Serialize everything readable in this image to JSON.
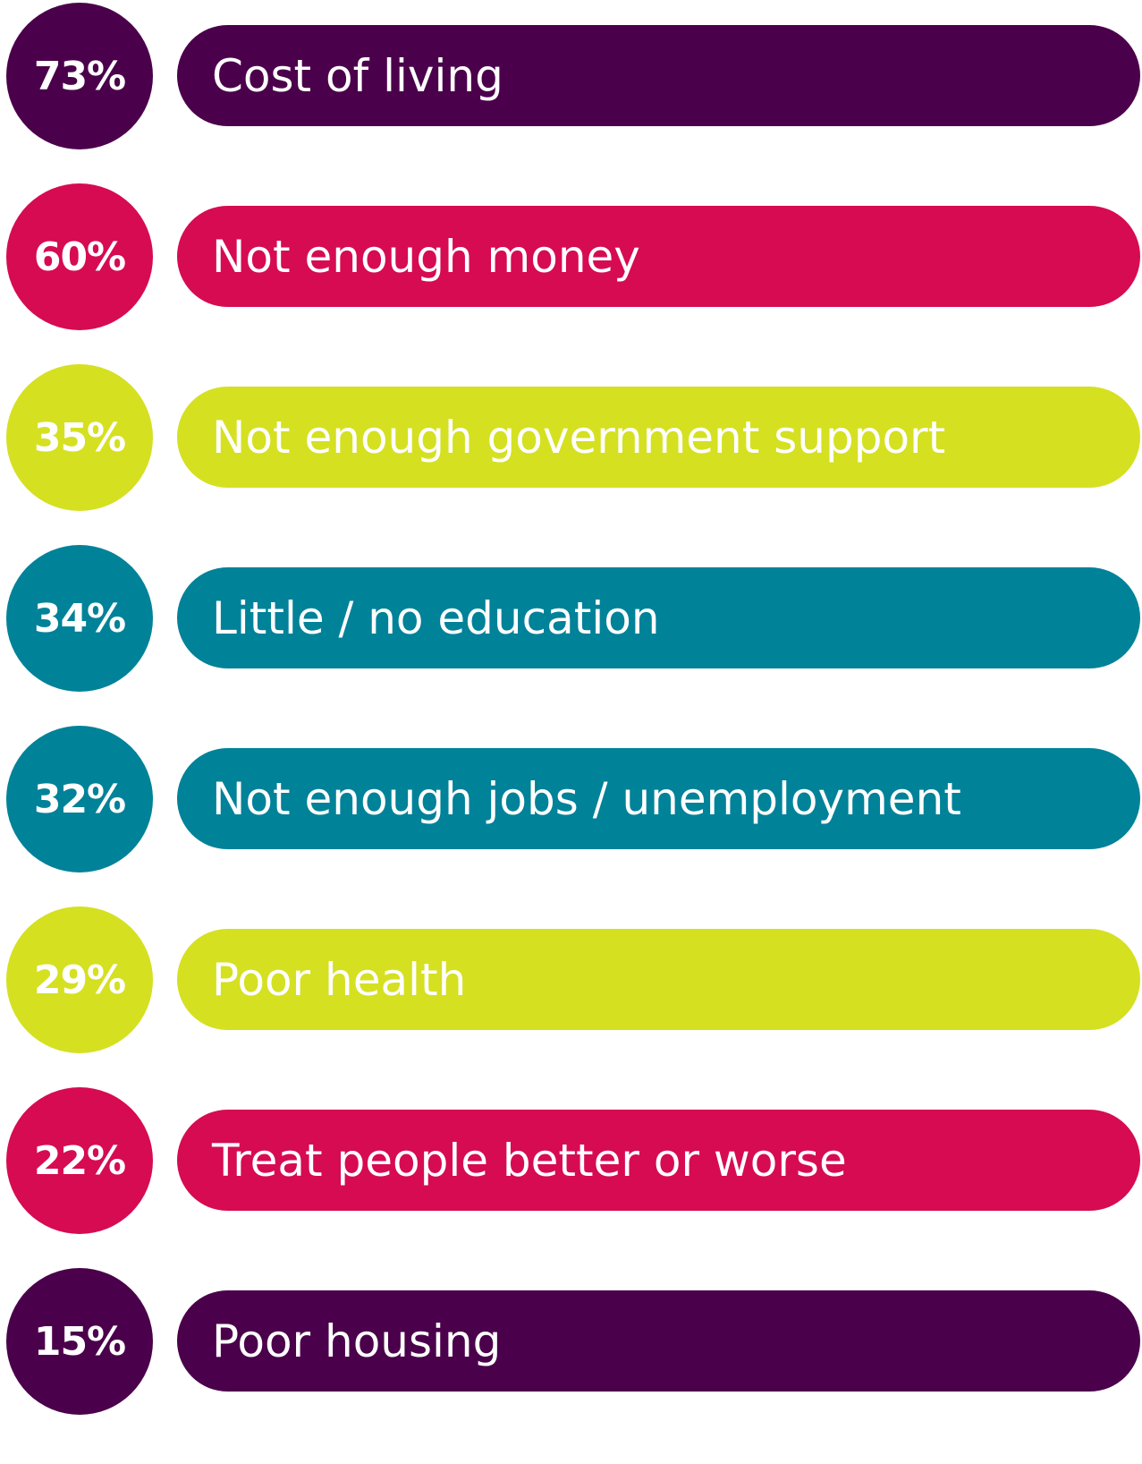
{
  "chart_data": {
    "type": "bar",
    "title": "",
    "xlabel": "",
    "ylabel": "",
    "value_unit": "%",
    "categories": [
      "Cost of living",
      "Not enough money",
      "Not enough government support",
      "Little / no education",
      "Not enough jobs / unemployment",
      "Poor health",
      "Treat people better or worse",
      "Poor housing"
    ],
    "values": [
      73,
      60,
      35,
      34,
      32,
      29,
      22,
      15
    ],
    "value_labels": [
      "73%",
      "60%",
      "35%",
      "34%",
      "32%",
      "29%",
      "22%",
      "15%"
    ],
    "colors": [
      "#4b004b",
      "#d60b52",
      "#d5e021",
      "#008299",
      "#008299",
      "#d5e021",
      "#d60b52",
      "#4b004b"
    ]
  }
}
